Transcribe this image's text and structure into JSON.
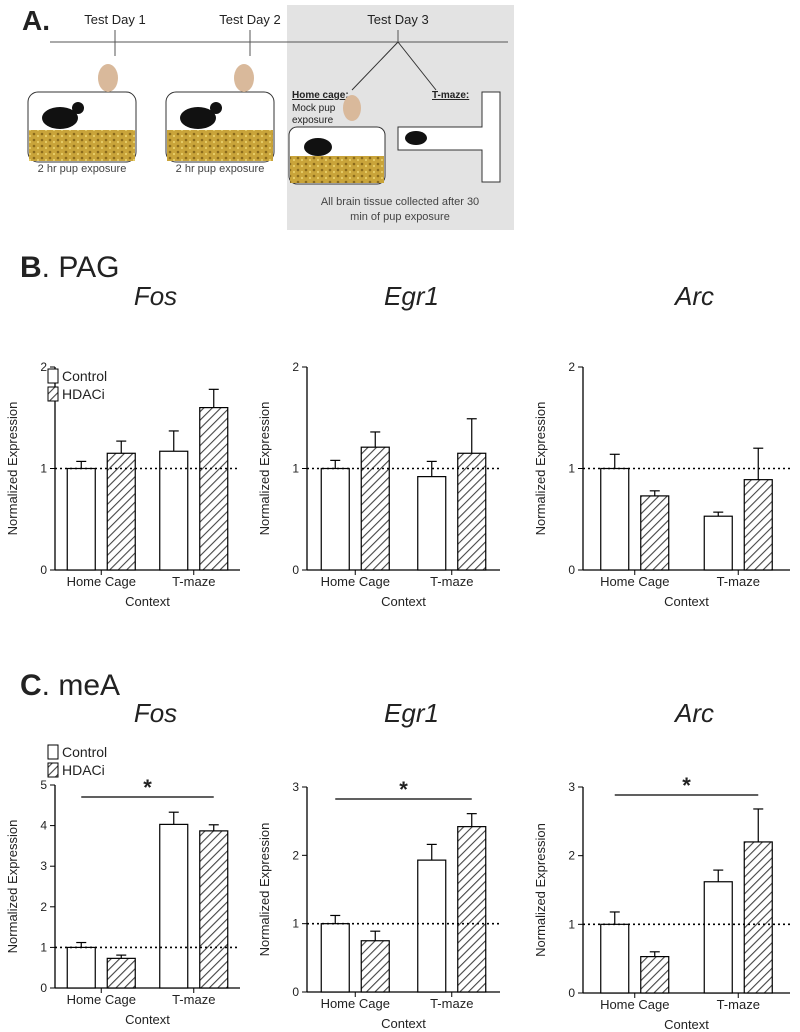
{
  "diagram": {
    "panel_letter": "A.",
    "days": [
      "Test Day 1",
      "Test Day 2",
      "Test Day 3"
    ],
    "exposure": [
      "2 hr pup exposure",
      "2 hr pup exposure"
    ],
    "home_cage": "Home cage:",
    "mock": [
      "Mock pup",
      "exposure"
    ],
    "tmaze": "T-maze:",
    "collected": [
      "All brain tissue collected after 30",
      "min of pup exposure"
    ]
  },
  "panels": [
    {
      "letter": "B",
      "name": ". PAG"
    },
    {
      "letter": "C",
      "name": ". meA"
    }
  ],
  "chart_data": [
    {
      "type": "bar",
      "title": "Fos",
      "categories": [
        "Home Cage",
        "T-maze"
      ],
      "xlabel": "Context",
      "ylabel": "Normalized Expression",
      "ylim": [
        0,
        2
      ],
      "yticks": [
        0,
        1,
        2
      ],
      "reference_line": 1,
      "legend": "top-left",
      "series": [
        {
          "name": "Control",
          "color": "#ffffff",
          "values": [
            1.0,
            1.17
          ],
          "errors": [
            0.07,
            0.2
          ]
        },
        {
          "name": "HDACi",
          "color": "#555555",
          "pattern": "hatch",
          "values": [
            1.15,
            1.6
          ],
          "errors": [
            0.12,
            0.18
          ]
        }
      ]
    },
    {
      "type": "bar",
      "title": "Egr1",
      "categories": [
        "Home Cage",
        "T-maze"
      ],
      "xlabel": "Context",
      "ylabel": "Normalized Expression",
      "ylim": [
        0,
        2
      ],
      "yticks": [
        0,
        1,
        2
      ],
      "reference_line": 1,
      "series": [
        {
          "name": "Control",
          "color": "#ffffff",
          "values": [
            1.0,
            0.92
          ],
          "errors": [
            0.08,
            0.15
          ]
        },
        {
          "name": "HDACi",
          "color": "#555555",
          "pattern": "hatch",
          "values": [
            1.21,
            1.15
          ],
          "errors": [
            0.15,
            0.34
          ]
        }
      ]
    },
    {
      "type": "bar",
      "title": "Arc",
      "categories": [
        "Home Cage",
        "T-maze"
      ],
      "xlabel": "Context",
      "ylabel": "Normalized Expression",
      "ylim": [
        0,
        2
      ],
      "yticks": [
        0,
        1,
        2
      ],
      "reference_line": 1,
      "series": [
        {
          "name": "Control",
          "color": "#ffffff",
          "values": [
            1.0,
            0.53
          ],
          "errors": [
            0.14,
            0.04
          ]
        },
        {
          "name": "HDACi",
          "color": "#555555",
          "pattern": "hatch",
          "values": [
            0.73,
            0.89
          ],
          "errors": [
            0.05,
            0.31
          ]
        }
      ]
    },
    {
      "type": "bar",
      "title": "Fos",
      "categories": [
        "Home Cage",
        "T-maze"
      ],
      "xlabel": "Context",
      "ylabel": "Normalized Expression",
      "ylim": [
        0,
        5
      ],
      "yticks": [
        0,
        1,
        2,
        3,
        4,
        5
      ],
      "reference_line": 1,
      "legend": "above-left",
      "annotation": "*",
      "series": [
        {
          "name": "Control",
          "color": "#ffffff",
          "values": [
            1.0,
            4.03
          ],
          "errors": [
            0.12,
            0.3
          ]
        },
        {
          "name": "HDACi",
          "color": "#555555",
          "pattern": "hatch",
          "values": [
            0.73,
            3.87
          ],
          "errors": [
            0.08,
            0.15
          ]
        }
      ]
    },
    {
      "type": "bar",
      "title": "Egr1",
      "categories": [
        "Home Cage",
        "T-maze"
      ],
      "xlabel": "Context",
      "ylabel": "Normalized Expression",
      "ylim": [
        0,
        3
      ],
      "yticks": [
        0,
        1,
        2,
        3
      ],
      "reference_line": 1,
      "annotation": "*",
      "series": [
        {
          "name": "Control",
          "color": "#ffffff",
          "values": [
            1.0,
            1.93
          ],
          "errors": [
            0.12,
            0.23
          ]
        },
        {
          "name": "HDACi",
          "color": "#555555",
          "pattern": "hatch",
          "values": [
            0.75,
            2.42
          ],
          "errors": [
            0.14,
            0.19
          ]
        }
      ]
    },
    {
      "type": "bar",
      "title": "Arc",
      "categories": [
        "Home Cage",
        "T-maze"
      ],
      "xlabel": "Context",
      "ylabel": "Normalized Expression",
      "ylim": [
        0,
        3
      ],
      "yticks": [
        0,
        1,
        2,
        3
      ],
      "reference_line": 1,
      "annotation": "*",
      "series": [
        {
          "name": "Control",
          "color": "#ffffff",
          "values": [
            1.0,
            1.62
          ],
          "errors": [
            0.18,
            0.17
          ]
        },
        {
          "name": "HDACi",
          "color": "#555555",
          "pattern": "hatch",
          "values": [
            0.53,
            2.2
          ],
          "errors": [
            0.07,
            0.48
          ]
        }
      ]
    }
  ]
}
